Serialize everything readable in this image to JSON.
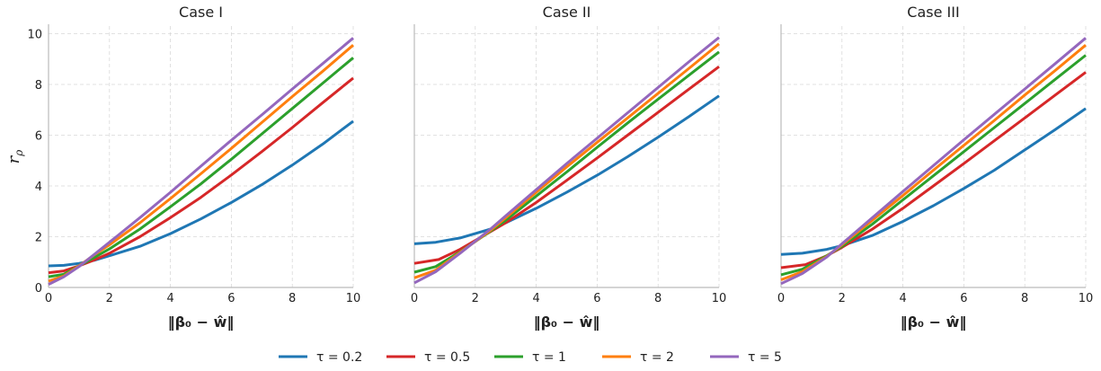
{
  "chart_data": [
    {
      "type": "line",
      "title": "Case I",
      "xlabel": "‖β₀ − ŵ‖",
      "ylabel": "r_ρ",
      "xlim": [
        0,
        10
      ],
      "ylim": [
        0,
        10.3
      ],
      "xticks": [
        0,
        2,
        4,
        6,
        8,
        10
      ],
      "yticks": [
        0,
        2,
        4,
        6,
        8,
        10
      ],
      "grid": true,
      "series": [
        {
          "name": "τ = 0.2",
          "color": "#1f77b4",
          "x": [
            0,
            0.5,
            1,
            1.5,
            2,
            3,
            4,
            5,
            6,
            7,
            8,
            9,
            10
          ],
          "y": [
            0.85,
            0.87,
            0.95,
            1.07,
            1.25,
            1.62,
            2.12,
            2.7,
            3.35,
            4.05,
            4.82,
            5.65,
            6.55
          ]
        },
        {
          "name": "τ = 0.5",
          "color": "#d62728",
          "x": [
            0,
            0.5,
            1,
            1.5,
            2,
            3,
            4,
            5,
            6,
            7,
            8,
            9,
            10
          ],
          "y": [
            0.58,
            0.65,
            0.85,
            1.08,
            1.35,
            2.0,
            2.75,
            3.55,
            4.43,
            5.35,
            6.3,
            7.28,
            8.25
          ]
        },
        {
          "name": "τ = 1",
          "color": "#2ca02c",
          "x": [
            0,
            0.5,
            1,
            1.5,
            2,
            3,
            4,
            5,
            6,
            7,
            8,
            9,
            10
          ],
          "y": [
            0.42,
            0.52,
            0.85,
            1.18,
            1.52,
            2.3,
            3.18,
            4.08,
            5.05,
            6.05,
            7.05,
            8.05,
            9.05
          ]
        },
        {
          "name": "τ = 2",
          "color": "#ff7f0e",
          "x": [
            0,
            0.5,
            1,
            1.5,
            2,
            3,
            4,
            5,
            6,
            7,
            8,
            9,
            10
          ],
          "y": [
            0.25,
            0.45,
            0.85,
            1.28,
            1.68,
            2.55,
            3.5,
            4.48,
            5.48,
            6.5,
            7.52,
            8.52,
            9.55
          ]
        },
        {
          "name": "τ = 5",
          "color": "#9467bd",
          "x": [
            0,
            0.5,
            1,
            1.5,
            2,
            3,
            4,
            5,
            6,
            7,
            8,
            9,
            10
          ],
          "y": [
            0.12,
            0.42,
            0.82,
            1.3,
            1.78,
            2.75,
            3.75,
            4.78,
            5.8,
            6.8,
            7.82,
            8.82,
            9.83
          ]
        }
      ]
    },
    {
      "type": "line",
      "title": "Case II",
      "xlabel": "‖β₀ − ŵ‖",
      "ylabel": "",
      "xlim": [
        0,
        10
      ],
      "ylim": [
        0,
        10.3
      ],
      "xticks": [
        0,
        2,
        4,
        6,
        8,
        10
      ],
      "yticks": [],
      "grid": true,
      "series": [
        {
          "name": "τ = 0.2",
          "color": "#1f77b4",
          "x": [
            0,
            0.7,
            1.5,
            2.5,
            3,
            4,
            5,
            6,
            7,
            8,
            9,
            10
          ],
          "y": [
            1.72,
            1.78,
            1.95,
            2.3,
            2.55,
            3.12,
            3.75,
            4.42,
            5.15,
            5.92,
            6.72,
            7.55
          ]
        },
        {
          "name": "τ = 0.5",
          "color": "#d62728",
          "x": [
            0,
            0.8,
            1.5,
            2.5,
            3,
            4,
            5,
            6,
            7,
            8,
            9,
            10
          ],
          "y": [
            0.95,
            1.1,
            1.5,
            2.2,
            2.55,
            3.35,
            4.22,
            5.1,
            6.0,
            6.9,
            7.8,
            8.7
          ]
        },
        {
          "name": "τ = 1",
          "color": "#2ca02c",
          "x": [
            0,
            0.7,
            1.5,
            2.5,
            3,
            4,
            5,
            6,
            7,
            8,
            9,
            10
          ],
          "y": [
            0.6,
            0.82,
            1.4,
            2.22,
            2.65,
            3.6,
            4.55,
            5.52,
            6.48,
            7.42,
            8.35,
            9.28
          ]
        },
        {
          "name": "τ = 2",
          "color": "#ff7f0e",
          "x": [
            0,
            0.7,
            1.5,
            2.5,
            3,
            4,
            5,
            6,
            7,
            8,
            9,
            10
          ],
          "y": [
            0.38,
            0.68,
            1.38,
            2.25,
            2.75,
            3.75,
            4.75,
            5.72,
            6.68,
            7.65,
            8.62,
            9.6
          ]
        },
        {
          "name": "τ = 5",
          "color": "#9467bd",
          "x": [
            0,
            0.7,
            1.5,
            2.5,
            3,
            4,
            5,
            6,
            7,
            8,
            9,
            10
          ],
          "y": [
            0.18,
            0.62,
            1.35,
            2.3,
            2.82,
            3.85,
            4.88,
            5.88,
            6.88,
            7.88,
            8.88,
            9.85
          ]
        }
      ]
    },
    {
      "type": "line",
      "title": "Case III",
      "xlabel": "‖β₀ − ŵ‖",
      "ylabel": "",
      "xlim": [
        0,
        10
      ],
      "ylim": [
        0,
        10.3
      ],
      "xticks": [
        0,
        2,
        4,
        6,
        8,
        10
      ],
      "yticks": [],
      "grid": true,
      "series": [
        {
          "name": "τ = 0.2",
          "color": "#1f77b4",
          "x": [
            0,
            0.7,
            1.5,
            2,
            3,
            4,
            5,
            6,
            7,
            8,
            9,
            10
          ],
          "y": [
            1.3,
            1.35,
            1.5,
            1.65,
            2.05,
            2.6,
            3.22,
            3.9,
            4.62,
            5.42,
            6.22,
            7.05
          ]
        },
        {
          "name": "τ = 0.5",
          "color": "#d62728",
          "x": [
            0,
            0.8,
            1.5,
            2,
            3,
            4,
            5,
            6,
            7,
            8,
            9,
            10
          ],
          "y": [
            0.78,
            0.9,
            1.25,
            1.58,
            2.3,
            3.12,
            4.0,
            4.88,
            5.78,
            6.68,
            7.58,
            8.48
          ]
        },
        {
          "name": "τ = 1",
          "color": "#2ca02c",
          "x": [
            0,
            0.7,
            1.5,
            2,
            3,
            4,
            5,
            6,
            7,
            8,
            9,
            10
          ],
          "y": [
            0.5,
            0.72,
            1.25,
            1.62,
            2.5,
            3.45,
            4.4,
            5.35,
            6.3,
            7.25,
            8.2,
            9.15
          ]
        },
        {
          "name": "τ = 2",
          "color": "#ff7f0e",
          "x": [
            0,
            0.7,
            1.5,
            2,
            3,
            4,
            5,
            6,
            7,
            8,
            9,
            10
          ],
          "y": [
            0.3,
            0.62,
            1.22,
            1.68,
            2.65,
            3.62,
            4.62,
            5.6,
            6.58,
            7.58,
            8.55,
            9.55
          ]
        },
        {
          "name": "τ = 5",
          "color": "#9467bd",
          "x": [
            0,
            0.7,
            1.5,
            2,
            3,
            4,
            5,
            6,
            7,
            8,
            9,
            10
          ],
          "y": [
            0.15,
            0.55,
            1.2,
            1.72,
            2.75,
            3.78,
            4.8,
            5.82,
            6.82,
            7.82,
            8.82,
            9.83
          ]
        }
      ]
    }
  ],
  "legend": {
    "placement": "bottom-center",
    "entries": [
      {
        "label": "τ = 0.2",
        "color": "#1f77b4"
      },
      {
        "label": "τ = 0.5",
        "color": "#d62728"
      },
      {
        "label": "τ = 1",
        "color": "#2ca02c"
      },
      {
        "label": "τ = 2",
        "color": "#ff7f0e"
      },
      {
        "label": "τ = 5",
        "color": "#9467bd"
      }
    ]
  }
}
